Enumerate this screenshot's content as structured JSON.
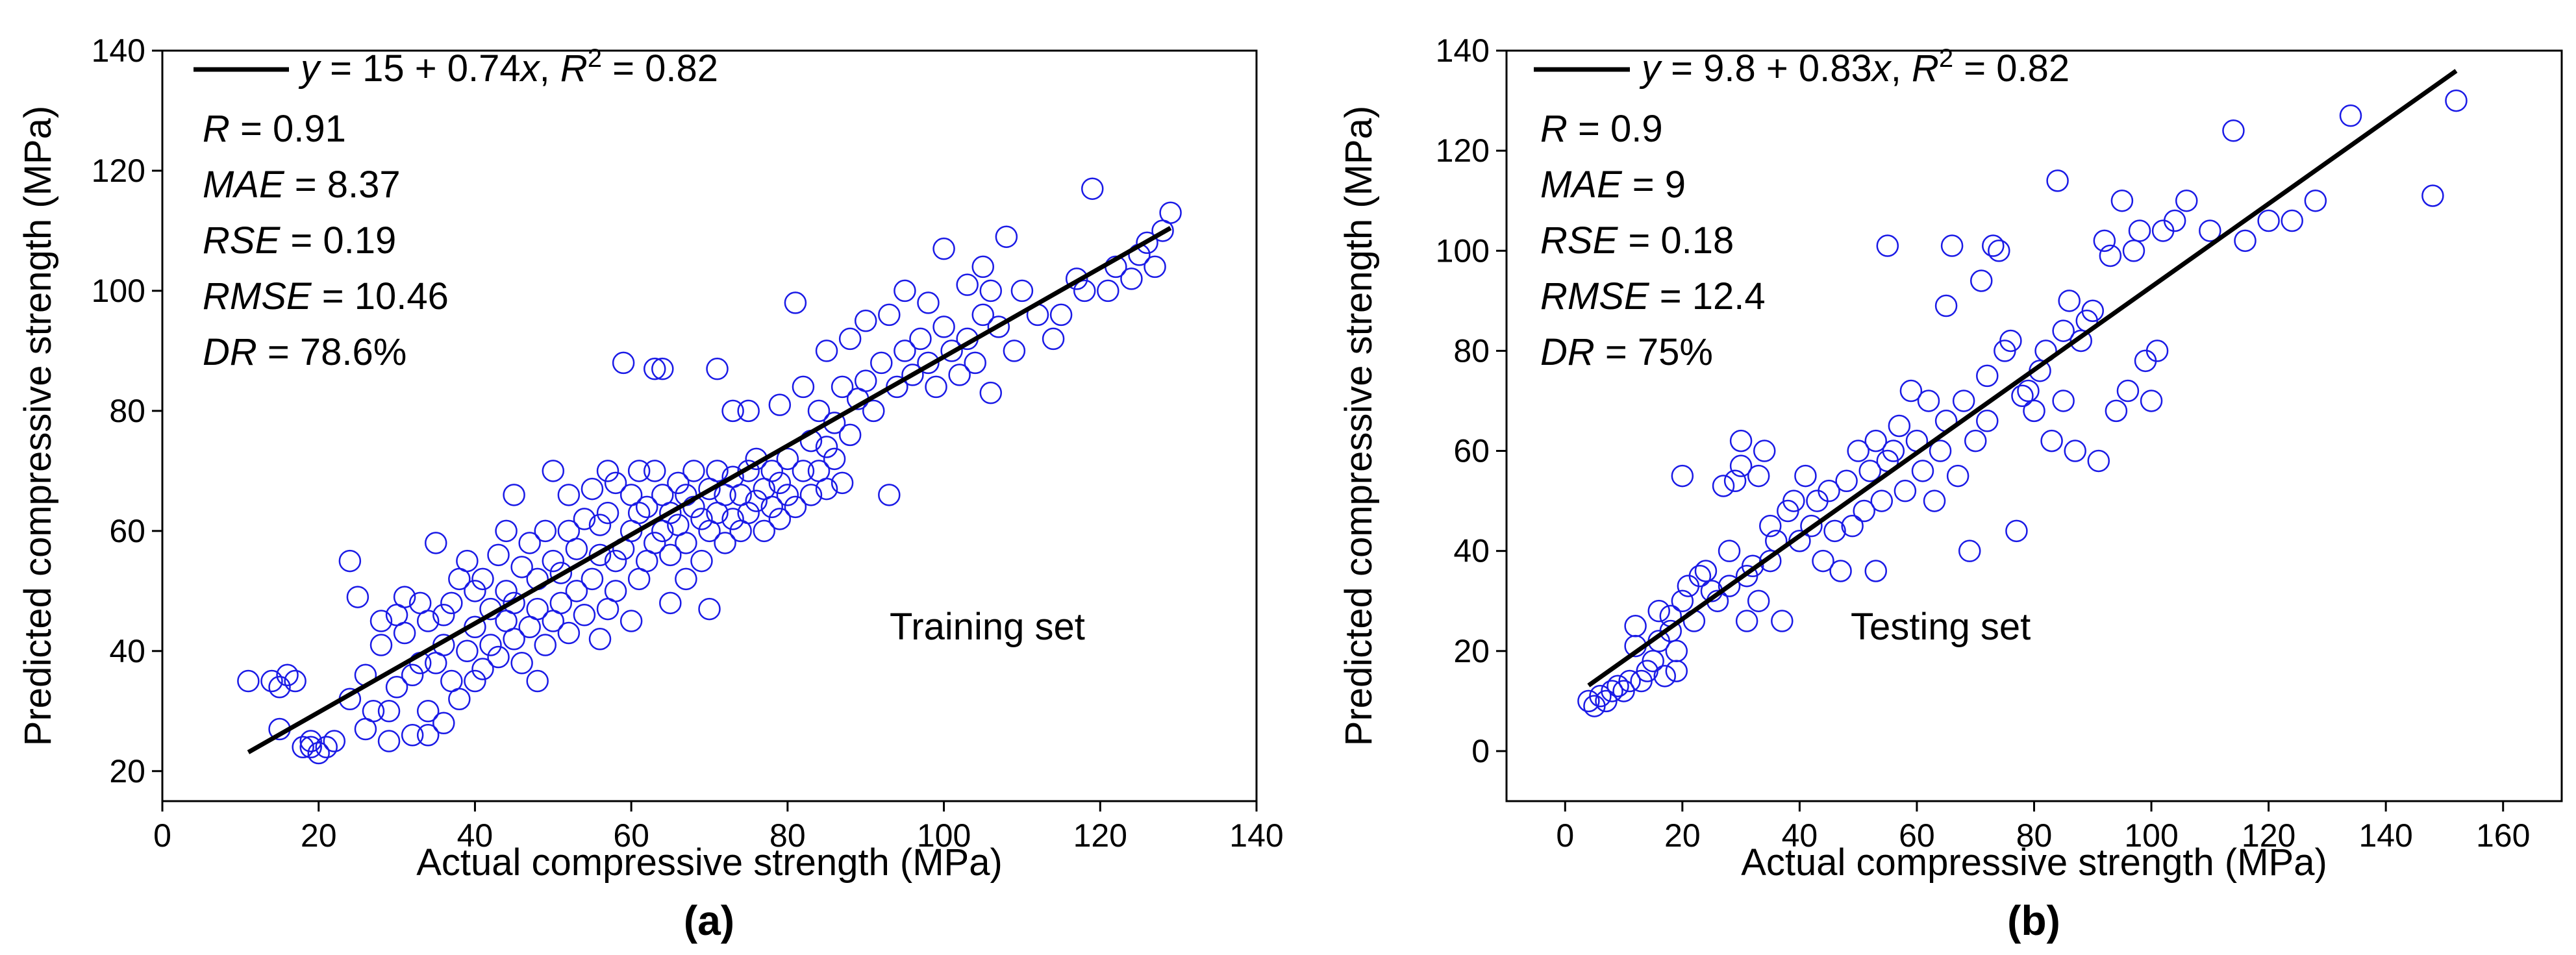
{
  "chart_data": [
    {
      "type": "scatter",
      "panel_label": "(a)",
      "annotation": "Training set",
      "xlabel": "Actual compressive strength (MPa)",
      "ylabel": "Predicted compressive strength (MPa)",
      "xlim": [
        0,
        140
      ],
      "ylim": [
        15,
        140
      ],
      "xticks": [
        0,
        20,
        40,
        60,
        80,
        100,
        120,
        140
      ],
      "yticks": [
        20,
        40,
        60,
        80,
        100,
        120,
        140
      ],
      "marker_color": "#1a1ae6",
      "fit": {
        "intercept": 15,
        "slope": 0.74,
        "x_range": [
          11,
          129
        ],
        "legend_parts": [
          {
            "text": "y",
            "italic": true
          },
          {
            "text": " = 15 + 0.74",
            "italic": false
          },
          {
            "text": "x",
            "italic": true
          },
          {
            "text": ", ",
            "italic": false
          },
          {
            "text": "R",
            "italic": true
          },
          {
            "text": "2",
            "italic": false,
            "sup": true
          },
          {
            "text": " = 0.82",
            "italic": false
          }
        ]
      },
      "stats": [
        {
          "name": "R",
          "value": "0.91"
        },
        {
          "name": "MAE",
          "value": "8.37"
        },
        {
          "name": "RSE",
          "value": "0.19"
        },
        {
          "name": "RMSE",
          "value": "10.46"
        },
        {
          "name": "DR",
          "value": "78.6%"
        }
      ],
      "points": [
        [
          11,
          35
        ],
        [
          14,
          35
        ],
        [
          15,
          34
        ],
        [
          16,
          36
        ],
        [
          17,
          35
        ],
        [
          15,
          27
        ],
        [
          18,
          24
        ],
        [
          19,
          24
        ],
        [
          19,
          25
        ],
        [
          20,
          23
        ],
        [
          21,
          24
        ],
        [
          22,
          25
        ],
        [
          24,
          32
        ],
        [
          24,
          55
        ],
        [
          25,
          49
        ],
        [
          26,
          27
        ],
        [
          26,
          36
        ],
        [
          27,
          30
        ],
        [
          28,
          41
        ],
        [
          28,
          45
        ],
        [
          29,
          25
        ],
        [
          29,
          30
        ],
        [
          30,
          34
        ],
        [
          30,
          46
        ],
        [
          31,
          43
        ],
        [
          31,
          49
        ],
        [
          32,
          26
        ],
        [
          32,
          36
        ],
        [
          33,
          38
        ],
        [
          33,
          48
        ],
        [
          34,
          26
        ],
        [
          34,
          30
        ],
        [
          34,
          45
        ],
        [
          35,
          38
        ],
        [
          35,
          58
        ],
        [
          36,
          28
        ],
        [
          36,
          41
        ],
        [
          36,
          46
        ],
        [
          37,
          35
        ],
        [
          37,
          48
        ],
        [
          38,
          32
        ],
        [
          38,
          52
        ],
        [
          39,
          40
        ],
        [
          39,
          55
        ],
        [
          40,
          35
        ],
        [
          40,
          44
        ],
        [
          40,
          50
        ],
        [
          41,
          37
        ],
        [
          41,
          52
        ],
        [
          42,
          41
        ],
        [
          42,
          47
        ],
        [
          43,
          39
        ],
        [
          43,
          56
        ],
        [
          44,
          45
        ],
        [
          44,
          50
        ],
        [
          44,
          60
        ],
        [
          45,
          42
        ],
        [
          45,
          48
        ],
        [
          45,
          66
        ],
        [
          46,
          38
        ],
        [
          46,
          54
        ],
        [
          47,
          44
        ],
        [
          47,
          58
        ],
        [
          48,
          35
        ],
        [
          48,
          47
        ],
        [
          48,
          52
        ],
        [
          49,
          41
        ],
        [
          49,
          60
        ],
        [
          50,
          45
        ],
        [
          50,
          55
        ],
        [
          50,
          70
        ],
        [
          51,
          48
        ],
        [
          51,
          53
        ],
        [
          52,
          43
        ],
        [
          52,
          60
        ],
        [
          52,
          66
        ],
        [
          53,
          50
        ],
        [
          53,
          57
        ],
        [
          54,
          46
        ],
        [
          54,
          62
        ],
        [
          55,
          52
        ],
        [
          55,
          67
        ],
        [
          56,
          42
        ],
        [
          56,
          56
        ],
        [
          56,
          61
        ],
        [
          57,
          47
        ],
        [
          57,
          63
        ],
        [
          57,
          70
        ],
        [
          58,
          50
        ],
        [
          58,
          55
        ],
        [
          58,
          68
        ],
        [
          59,
          57
        ],
        [
          59,
          88
        ],
        [
          60,
          45
        ],
        [
          60,
          60
        ],
        [
          60,
          66
        ],
        [
          61,
          52
        ],
        [
          61,
          63
        ],
        [
          61,
          70
        ],
        [
          62,
          55
        ],
        [
          62,
          64
        ],
        [
          63,
          87
        ],
        [
          63,
          58
        ],
        [
          63,
          70
        ],
        [
          64,
          60
        ],
        [
          64,
          66
        ],
        [
          64,
          87
        ],
        [
          65,
          48
        ],
        [
          65,
          56
        ],
        [
          65,
          63
        ],
        [
          66,
          61
        ],
        [
          66,
          68
        ],
        [
          67,
          52
        ],
        [
          67,
          58
        ],
        [
          67,
          66
        ],
        [
          68,
          64
        ],
        [
          68,
          70
        ],
        [
          69,
          55
        ],
        [
          69,
          62
        ],
        [
          70,
          47
        ],
        [
          70,
          60
        ],
        [
          70,
          67
        ],
        [
          71,
          63
        ],
        [
          71,
          70
        ],
        [
          71,
          87
        ],
        [
          72,
          58
        ],
        [
          72,
          66
        ],
        [
          73,
          62
        ],
        [
          73,
          69
        ],
        [
          73,
          80
        ],
        [
          74,
          60
        ],
        [
          74,
          66
        ],
        [
          75,
          63
        ],
        [
          75,
          70
        ],
        [
          75,
          80
        ],
        [
          76,
          65
        ],
        [
          76,
          72
        ],
        [
          77,
          60
        ],
        [
          77,
          67
        ],
        [
          78,
          64
        ],
        [
          78,
          70
        ],
        [
          79,
          62
        ],
        [
          79,
          68
        ],
        [
          79,
          81
        ],
        [
          80,
          66
        ],
        [
          80,
          72
        ],
        [
          81,
          98
        ],
        [
          81,
          64
        ],
        [
          82,
          70
        ],
        [
          82,
          84
        ],
        [
          83,
          66
        ],
        [
          83,
          75
        ],
        [
          84,
          70
        ],
        [
          84,
          80
        ],
        [
          85,
          67
        ],
        [
          85,
          74
        ],
        [
          85,
          90
        ],
        [
          86,
          72
        ],
        [
          86,
          78
        ],
        [
          87,
          68
        ],
        [
          87,
          84
        ],
        [
          88,
          76
        ],
        [
          88,
          92
        ],
        [
          89,
          82
        ],
        [
          90,
          85
        ],
        [
          90,
          95
        ],
        [
          91,
          80
        ],
        [
          92,
          88
        ],
        [
          93,
          66
        ],
        [
          93,
          96
        ],
        [
          94,
          84
        ],
        [
          95,
          90
        ],
        [
          95,
          100
        ],
        [
          96,
          86
        ],
        [
          97,
          92
        ],
        [
          98,
          88
        ],
        [
          98,
          98
        ],
        [
          99,
          84
        ],
        [
          100,
          94
        ],
        [
          100,
          107
        ],
        [
          101,
          90
        ],
        [
          102,
          86
        ],
        [
          103,
          92
        ],
        [
          103,
          101
        ],
        [
          104,
          88
        ],
        [
          105,
          96
        ],
        [
          105,
          104
        ],
        [
          106,
          83
        ],
        [
          106,
          100
        ],
        [
          107,
          94
        ],
        [
          108,
          109
        ],
        [
          109,
          90
        ],
        [
          110,
          100
        ],
        [
          112,
          96
        ],
        [
          114,
          92
        ],
        [
          115,
          96
        ],
        [
          117,
          102
        ],
        [
          118,
          100
        ],
        [
          119,
          117
        ],
        [
          121,
          100
        ],
        [
          122,
          104
        ],
        [
          124,
          102
        ],
        [
          125,
          106
        ],
        [
          126,
          108
        ],
        [
          127,
          104
        ],
        [
          128,
          110
        ],
        [
          129,
          113
        ]
      ]
    },
    {
      "type": "scatter",
      "panel_label": "(b)",
      "annotation": "Testing set",
      "xlabel": "Actual compressive strength (MPa)",
      "ylabel": "Predicted compressive strength (MPa)",
      "xlim": [
        -10,
        170
      ],
      "ylim": [
        -10,
        140
      ],
      "xticks": [
        0,
        20,
        40,
        60,
        80,
        100,
        120,
        140,
        160
      ],
      "yticks": [
        0,
        20,
        40,
        60,
        80,
        100,
        120,
        140
      ],
      "marker_color": "#1a1ae6",
      "fit": {
        "intercept": 9.8,
        "slope": 0.83,
        "x_range": [
          4,
          152
        ],
        "legend_parts": [
          {
            "text": "y",
            "italic": true
          },
          {
            "text": " = 9.8 + 0.83",
            "italic": false
          },
          {
            "text": "x",
            "italic": true
          },
          {
            "text": ", ",
            "italic": false
          },
          {
            "text": "R",
            "italic": true
          },
          {
            "text": "2",
            "italic": false,
            "sup": true
          },
          {
            "text": " = 0.82",
            "italic": false
          }
        ]
      },
      "stats": [
        {
          "name": "R",
          "value": "0.9"
        },
        {
          "name": "MAE",
          "value": "9"
        },
        {
          "name": "RSE",
          "value": "0.18"
        },
        {
          "name": "RMSE",
          "value": "12.4"
        },
        {
          "name": "DR",
          "value": "75%"
        }
      ],
      "points": [
        [
          4,
          10
        ],
        [
          5,
          9
        ],
        [
          6,
          11
        ],
        [
          7,
          10
        ],
        [
          8,
          12
        ],
        [
          9,
          13
        ],
        [
          10,
          12
        ],
        [
          11,
          14
        ],
        [
          12,
          21
        ],
        [
          12,
          25
        ],
        [
          13,
          14
        ],
        [
          14,
          16
        ],
        [
          15,
          18
        ],
        [
          16,
          22
        ],
        [
          16,
          28
        ],
        [
          17,
          15
        ],
        [
          18,
          24
        ],
        [
          18,
          27
        ],
        [
          19,
          16
        ],
        [
          19,
          20
        ],
        [
          20,
          55
        ],
        [
          20,
          30
        ],
        [
          21,
          33
        ],
        [
          22,
          26
        ],
        [
          23,
          35
        ],
        [
          24,
          36
        ],
        [
          25,
          32
        ],
        [
          26,
          30
        ],
        [
          27,
          53
        ],
        [
          28,
          40
        ],
        [
          28,
          33
        ],
        [
          29,
          54
        ],
        [
          30,
          57
        ],
        [
          30,
          62
        ],
        [
          31,
          35
        ],
        [
          31,
          26
        ],
        [
          32,
          37
        ],
        [
          33,
          55
        ],
        [
          33,
          30
        ],
        [
          34,
          60
        ],
        [
          35,
          38
        ],
        [
          35,
          45
        ],
        [
          36,
          42
        ],
        [
          37,
          26
        ],
        [
          38,
          48
        ],
        [
          39,
          50
        ],
        [
          40,
          42
        ],
        [
          41,
          55
        ],
        [
          42,
          45
        ],
        [
          43,
          50
        ],
        [
          44,
          38
        ],
        [
          45,
          52
        ],
        [
          46,
          44
        ],
        [
          47,
          36
        ],
        [
          48,
          54
        ],
        [
          49,
          45
        ],
        [
          50,
          60
        ],
        [
          51,
          48
        ],
        [
          52,
          56
        ],
        [
          53,
          62
        ],
        [
          53,
          36
        ],
        [
          54,
          50
        ],
        [
          55,
          101
        ],
        [
          55,
          58
        ],
        [
          56,
          60
        ],
        [
          57,
          65
        ],
        [
          58,
          52
        ],
        [
          59,
          72
        ],
        [
          60,
          62
        ],
        [
          61,
          56
        ],
        [
          62,
          70
        ],
        [
          63,
          50
        ],
        [
          64,
          60
        ],
        [
          65,
          66
        ],
        [
          65,
          89
        ],
        [
          66,
          101
        ],
        [
          67,
          55
        ],
        [
          68,
          70
        ],
        [
          69,
          40
        ],
        [
          70,
          62
        ],
        [
          71,
          94
        ],
        [
          72,
          66
        ],
        [
          72,
          75
        ],
        [
          73,
          101
        ],
        [
          74,
          100
        ],
        [
          75,
          80
        ],
        [
          76,
          82
        ],
        [
          77,
          44
        ],
        [
          78,
          71
        ],
        [
          79,
          72
        ],
        [
          80,
          68
        ],
        [
          81,
          76
        ],
        [
          82,
          80
        ],
        [
          83,
          62
        ],
        [
          84,
          114
        ],
        [
          85,
          84
        ],
        [
          85,
          70
        ],
        [
          86,
          90
        ],
        [
          87,
          60
        ],
        [
          88,
          82
        ],
        [
          89,
          86
        ],
        [
          90,
          88
        ],
        [
          91,
          58
        ],
        [
          92,
          102
        ],
        [
          93,
          99
        ],
        [
          94,
          68
        ],
        [
          95,
          110
        ],
        [
          96,
          72
        ],
        [
          97,
          100
        ],
        [
          98,
          104
        ],
        [
          99,
          78
        ],
        [
          100,
          70
        ],
        [
          101,
          80
        ],
        [
          102,
          104
        ],
        [
          104,
          106
        ],
        [
          106,
          110
        ],
        [
          110,
          104
        ],
        [
          114,
          124
        ],
        [
          116,
          102
        ],
        [
          120,
          106
        ],
        [
          124,
          106
        ],
        [
          128,
          110
        ],
        [
          134,
          127
        ],
        [
          148,
          111
        ],
        [
          152,
          130
        ]
      ]
    }
  ]
}
